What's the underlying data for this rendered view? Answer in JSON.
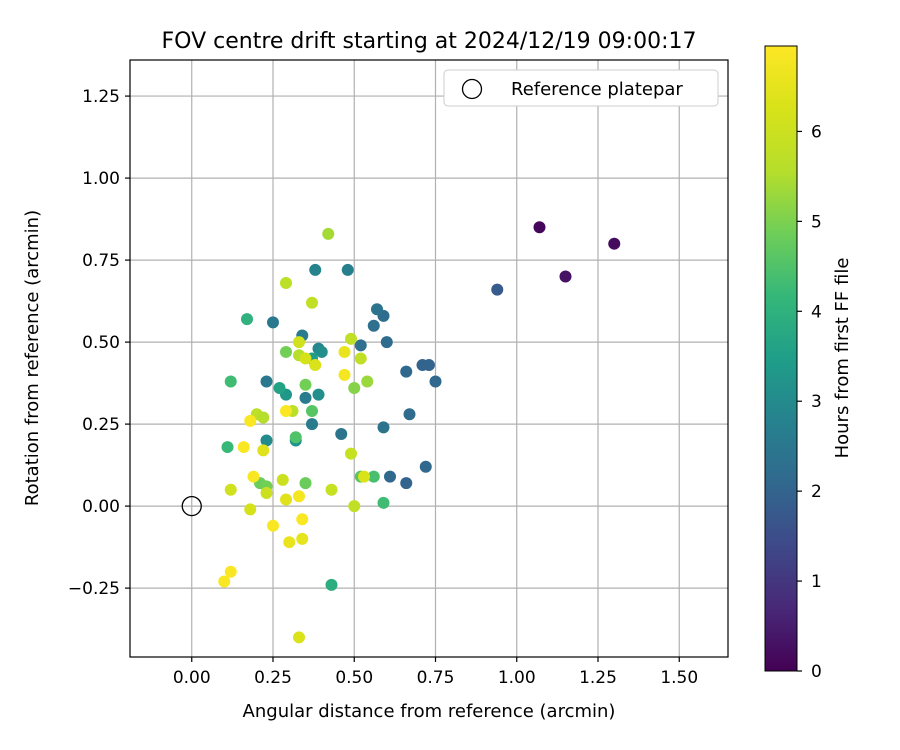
{
  "chart_data": {
    "type": "scatter",
    "title": "FOV centre drift starting at 2024/12/19 09:00:17",
    "xlabel": "Angular distance from reference (arcmin)",
    "ylabel": "Rotation from reference (arcmin)",
    "xlim": [
      -0.19,
      1.65
    ],
    "ylim": [
      -0.46,
      1.36
    ],
    "xticks": [
      0.0,
      0.25,
      0.5,
      0.75,
      1.0,
      1.25,
      1.5
    ],
    "xtick_labels": [
      "0.00",
      "0.25",
      "0.50",
      "0.75",
      "1.00",
      "1.25",
      "1.50"
    ],
    "yticks": [
      -0.25,
      0.0,
      0.25,
      0.5,
      0.75,
      1.0,
      1.25
    ],
    "ytick_labels": [
      "−0.25",
      "0.00",
      "0.25",
      "0.50",
      "0.75",
      "1.00",
      "1.25"
    ],
    "grid": true,
    "legend": {
      "placement": "top-right",
      "entries": [
        "Reference platepar"
      ]
    },
    "reference_point": {
      "x": 0.0,
      "y": 0.0
    },
    "colorbar": {
      "label": "Hours from first FF file",
      "colormap": "viridis",
      "range": [
        0,
        6.95
      ],
      "ticks": [
        0,
        1,
        2,
        3,
        4,
        5,
        6
      ],
      "tick_labels": [
        "0",
        "1",
        "2",
        "3",
        "4",
        "5",
        "6"
      ]
    },
    "series": [
      {
        "points": [
          {
            "x": 1.07,
            "y": 0.85,
            "c": 0.1
          },
          {
            "x": 1.3,
            "y": 0.8,
            "c": 0.2
          },
          {
            "x": 1.15,
            "y": 0.7,
            "c": 0.3
          },
          {
            "x": 0.94,
            "y": 0.66,
            "c": 1.8
          },
          {
            "x": 0.71,
            "y": 0.43,
            "c": 2.0
          },
          {
            "x": 0.73,
            "y": 0.43,
            "c": 2.0
          },
          {
            "x": 0.75,
            "y": 0.38,
            "c": 2.1
          },
          {
            "x": 0.66,
            "y": 0.41,
            "c": 2.1
          },
          {
            "x": 0.67,
            "y": 0.28,
            "c": 2.2
          },
          {
            "x": 0.72,
            "y": 0.12,
            "c": 2.1
          },
          {
            "x": 0.66,
            "y": 0.07,
            "c": 2.0
          },
          {
            "x": 0.61,
            "y": 0.09,
            "c": 2.1
          },
          {
            "x": 0.6,
            "y": 0.5,
            "c": 2.2
          },
          {
            "x": 0.59,
            "y": 0.58,
            "c": 2.2
          },
          {
            "x": 0.56,
            "y": 0.55,
            "c": 2.3
          },
          {
            "x": 0.57,
            "y": 0.6,
            "c": 2.4
          },
          {
            "x": 0.52,
            "y": 0.49,
            "c": 2.3
          },
          {
            "x": 0.59,
            "y": 0.24,
            "c": 2.4
          },
          {
            "x": 0.46,
            "y": 0.22,
            "c": 2.4
          },
          {
            "x": 0.48,
            "y": 0.72,
            "c": 2.7
          },
          {
            "x": 0.38,
            "y": 0.72,
            "c": 2.8
          },
          {
            "x": 0.25,
            "y": 0.56,
            "c": 2.5
          },
          {
            "x": 0.23,
            "y": 0.38,
            "c": 2.5
          },
          {
            "x": 0.34,
            "y": 0.52,
            "c": 2.6
          },
          {
            "x": 0.35,
            "y": 0.33,
            "c": 2.6
          },
          {
            "x": 0.37,
            "y": 0.25,
            "c": 2.6
          },
          {
            "x": 0.39,
            "y": 0.48,
            "c": 2.9
          },
          {
            "x": 0.4,
            "y": 0.47,
            "c": 3.1
          },
          {
            "x": 0.39,
            "y": 0.34,
            "c": 3.1
          },
          {
            "x": 0.32,
            "y": 0.2,
            "c": 3.2
          },
          {
            "x": 0.23,
            "y": 0.2,
            "c": 3.0
          },
          {
            "x": 0.37,
            "y": 0.45,
            "c": 3.5
          },
          {
            "x": 0.29,
            "y": 0.34,
            "c": 3.3
          },
          {
            "x": 0.27,
            "y": 0.36,
            "c": 3.6
          },
          {
            "x": 0.17,
            "y": 0.57,
            "c": 4.0
          },
          {
            "x": 0.12,
            "y": 0.38,
            "c": 4.3
          },
          {
            "x": 0.11,
            "y": 0.18,
            "c": 4.2
          },
          {
            "x": 0.43,
            "y": -0.24,
            "c": 3.9
          },
          {
            "x": 0.59,
            "y": 0.01,
            "c": 4.3
          },
          {
            "x": 0.56,
            "y": 0.09,
            "c": 4.4
          },
          {
            "x": 0.52,
            "y": 0.09,
            "c": 4.6
          },
          {
            "x": 0.37,
            "y": 0.29,
            "c": 4.6
          },
          {
            "x": 0.32,
            "y": 0.21,
            "c": 4.5
          },
          {
            "x": 0.29,
            "y": 0.47,
            "c": 4.9
          },
          {
            "x": 0.35,
            "y": 0.37,
            "c": 4.9
          },
          {
            "x": 0.35,
            "y": 0.07,
            "c": 4.8
          },
          {
            "x": 0.21,
            "y": 0.07,
            "c": 4.8
          },
          {
            "x": 0.23,
            "y": 0.06,
            "c": 4.9
          },
          {
            "x": 0.5,
            "y": 0.36,
            "c": 5.1
          },
          {
            "x": 0.54,
            "y": 0.38,
            "c": 5.3
          },
          {
            "x": 0.42,
            "y": 0.83,
            "c": 5.4
          },
          {
            "x": 0.29,
            "y": 0.68,
            "c": 5.7
          },
          {
            "x": 0.37,
            "y": 0.62,
            "c": 5.8
          },
          {
            "x": 0.49,
            "y": 0.51,
            "c": 5.8
          },
          {
            "x": 0.52,
            "y": 0.45,
            "c": 5.8
          },
          {
            "x": 0.33,
            "y": 0.46,
            "c": 5.6
          },
          {
            "x": 0.2,
            "y": 0.28,
            "c": 5.7
          },
          {
            "x": 0.22,
            "y": 0.27,
            "c": 5.6
          },
          {
            "x": 0.31,
            "y": 0.29,
            "c": 5.7
          },
          {
            "x": 0.5,
            "y": 0.0,
            "c": 5.8
          },
          {
            "x": 0.49,
            "y": 0.16,
            "c": 5.9
          },
          {
            "x": 0.43,
            "y": 0.05,
            "c": 5.9
          },
          {
            "x": 0.28,
            "y": 0.08,
            "c": 6.0
          },
          {
            "x": 0.23,
            "y": 0.04,
            "c": 6.0
          },
          {
            "x": 0.12,
            "y": 0.05,
            "c": 6.1
          },
          {
            "x": 0.18,
            "y": -0.01,
            "c": 6.2
          },
          {
            "x": 0.33,
            "y": 0.5,
            "c": 6.1
          },
          {
            "x": 0.35,
            "y": 0.45,
            "c": 6.2
          },
          {
            "x": 0.38,
            "y": 0.43,
            "c": 6.3
          },
          {
            "x": 0.22,
            "y": 0.17,
            "c": 6.4
          },
          {
            "x": 0.53,
            "y": 0.09,
            "c": 6.3
          },
          {
            "x": 0.29,
            "y": 0.02,
            "c": 6.4
          },
          {
            "x": 0.34,
            "y": -0.1,
            "c": 6.5
          },
          {
            "x": 0.3,
            "y": -0.11,
            "c": 6.6
          },
          {
            "x": 0.47,
            "y": 0.47,
            "c": 6.6
          },
          {
            "x": 0.33,
            "y": -0.4,
            "c": 6.3
          },
          {
            "x": 0.47,
            "y": 0.4,
            "c": 6.8
          },
          {
            "x": 0.29,
            "y": 0.29,
            "c": 6.9
          },
          {
            "x": 0.18,
            "y": 0.26,
            "c": 6.9
          },
          {
            "x": 0.16,
            "y": 0.18,
            "c": 6.9
          },
          {
            "x": 0.19,
            "y": 0.09,
            "c": 6.9
          },
          {
            "x": 0.33,
            "y": 0.03,
            "c": 6.8
          },
          {
            "x": 0.25,
            "y": -0.06,
            "c": 6.9
          },
          {
            "x": 0.34,
            "y": -0.04,
            "c": 6.9
          },
          {
            "x": 0.12,
            "y": -0.2,
            "c": 6.9
          },
          {
            "x": 0.1,
            "y": -0.23,
            "c": 6.9
          }
        ]
      }
    ]
  }
}
